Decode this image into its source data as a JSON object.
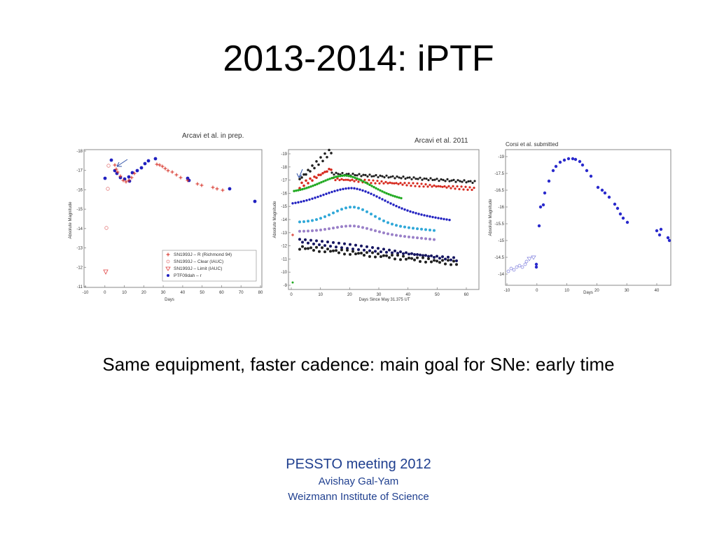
{
  "slide": {
    "title": "2013-2014: iPTF",
    "caption": "Same equipment, faster cadence: main goal for SNe: early time",
    "footer": {
      "meeting": "PESSTO meeting 2012",
      "author": "Avishay Gal-Yam",
      "institute": "Weizmann Institute of Science"
    }
  },
  "figures": {
    "left": {
      "citation": "Arcavi et al. in prep.",
      "xlabel": "Days",
      "ylabel": "Absolute Magnitude",
      "xticks": [
        "-10",
        "0",
        "10",
        "20",
        "30",
        "40",
        "50",
        "60",
        "70",
        "80"
      ],
      "yticks": [
        "-18",
        "-17",
        "-16",
        "-15",
        "-14",
        "-13",
        "-12",
        "-11"
      ],
      "legend": [
        {
          "label": "SN1993J – R (Richmond 94)",
          "color": "#d62a1f",
          "symbol": "plus"
        },
        {
          "label": "SN1993J – Clear (IAUC)",
          "color": "#e58080",
          "symbol": "circle-open"
        },
        {
          "label": "SN1993J – Limit (IAUC)",
          "color": "#e04040",
          "symbol": "triangle-open"
        },
        {
          "label": "PTF09dah – r",
          "color": "#2020c0",
          "symbol": "dot"
        }
      ]
    },
    "middle": {
      "citation": "Arcavi et al. 2011",
      "xlabel": "Days Since May 31.375 UT",
      "ylabel": "Absolute Magnitude",
      "xticks": [
        "0",
        "10",
        "20",
        "30",
        "40",
        "50",
        "60"
      ],
      "yticks": [
        "-19",
        "-18",
        "-17",
        "-16",
        "-15",
        "-14",
        "-13",
        "-12",
        "-11",
        "-10",
        "-9"
      ],
      "series_colors": [
        "#202020",
        "#d62a1f",
        "#22aa22",
        "#2020c0",
        "#30a8d8",
        "#9a80c8",
        "#151560"
      ]
    },
    "right": {
      "citation": "Corsi et al. submitted",
      "xlabel": "Days",
      "ylabel": "Absolute Magnitude",
      "xticks": [
        "-10",
        "0",
        "10",
        "20",
        "30",
        "40"
      ],
      "yticks": [
        "-19",
        "-17.5",
        "-16.5",
        "-16",
        "-15.5",
        "-15",
        "-14.5",
        "-14"
      ]
    }
  }
}
